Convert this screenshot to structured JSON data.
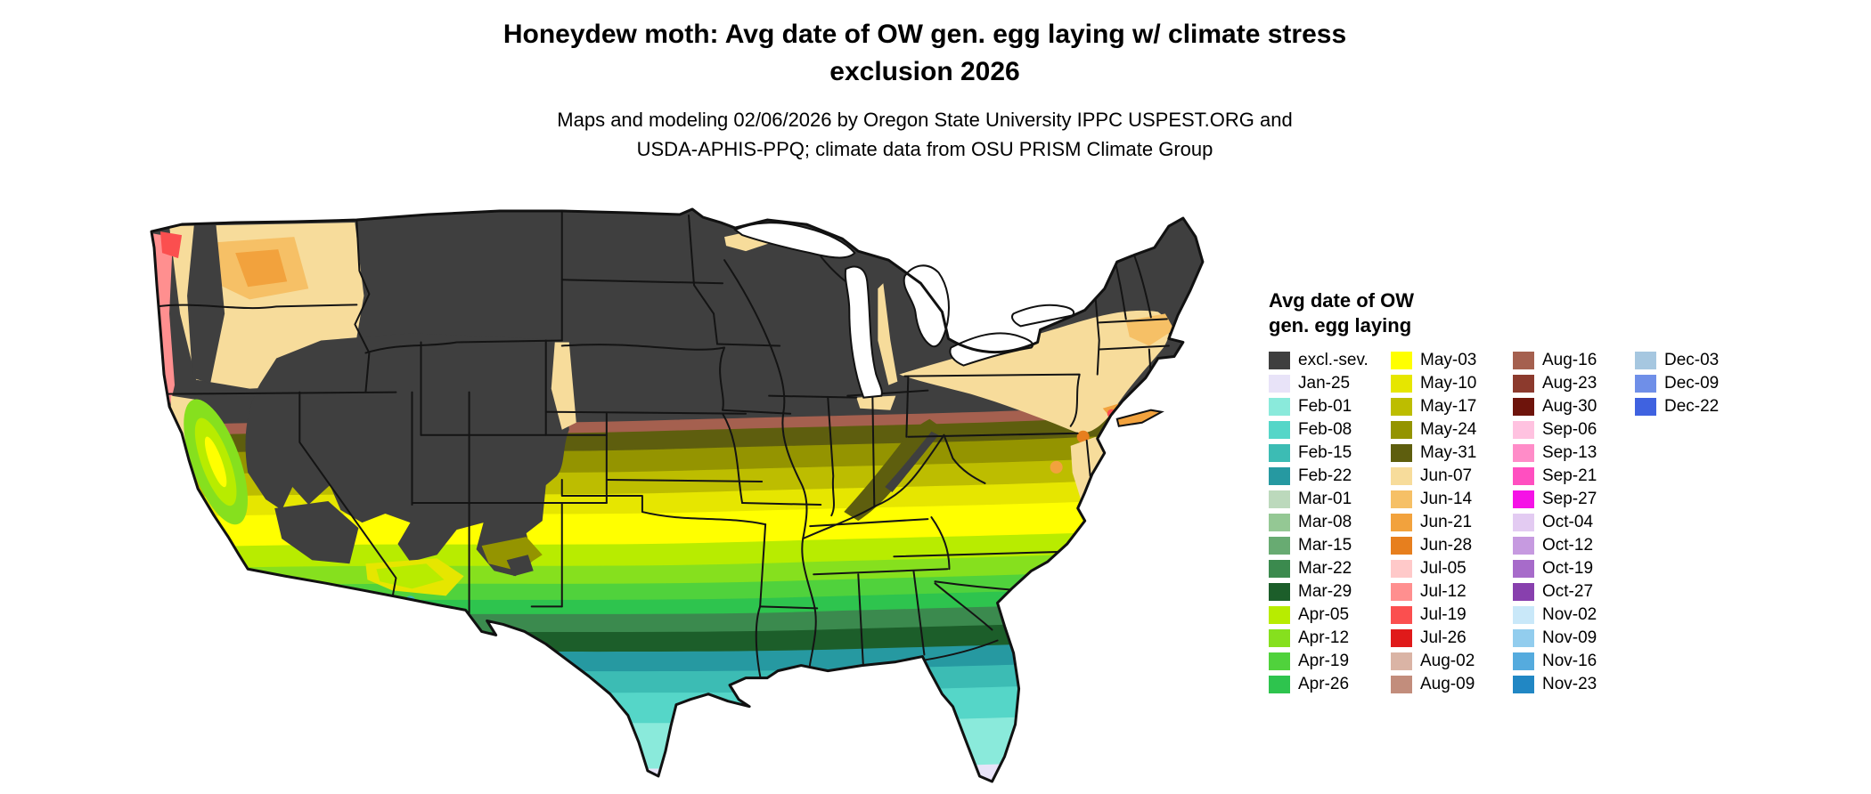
{
  "title": {
    "line1": "Honeydew moth: Avg date of OW gen. egg laying w/ climate stress",
    "line2": "exclusion 2026"
  },
  "subtitle": {
    "line1": "Maps and modeling 02/06/2026 by Oregon State University IPPC USPEST.ORG and",
    "line2": "USDA-APHIS-PPQ; climate data from OSU PRISM Climate Group"
  },
  "legend": {
    "title_line1": "Avg date of OW",
    "title_line2": "gen. egg laying",
    "columns": [
      [
        {
          "label": "excl.-sev.",
          "color": "#3f3f3f"
        },
        {
          "label": "Jan-25",
          "color": "#e8e3f8"
        },
        {
          "label": "Feb-01",
          "color": "#8aeadb"
        },
        {
          "label": "Feb-08",
          "color": "#55d6c8"
        },
        {
          "label": "Feb-15",
          "color": "#3cbcb4"
        },
        {
          "label": "Feb-22",
          "color": "#2699a1"
        },
        {
          "label": "Mar-01",
          "color": "#bcd9bc"
        },
        {
          "label": "Mar-08",
          "color": "#94c894"
        },
        {
          "label": "Mar-15",
          "color": "#68ab72"
        },
        {
          "label": "Mar-22",
          "color": "#3b8a4e"
        },
        {
          "label": "Mar-29",
          "color": "#1c5e2a"
        },
        {
          "label": "Apr-05",
          "color": "#b8ec00"
        },
        {
          "label": "Apr-12",
          "color": "#86e01e"
        },
        {
          "label": "Apr-19",
          "color": "#50d23c"
        },
        {
          "label": "Apr-26",
          "color": "#2ec44e"
        }
      ],
      [
        {
          "label": "May-03",
          "color": "#ffff00"
        },
        {
          "label": "May-10",
          "color": "#e6e600"
        },
        {
          "label": "May-17",
          "color": "#bdbd00"
        },
        {
          "label": "May-24",
          "color": "#949400"
        },
        {
          "label": "May-31",
          "color": "#5e5e0e"
        },
        {
          "label": "Jun-07",
          "color": "#f7dc9b"
        },
        {
          "label": "Jun-14",
          "color": "#f6c066"
        },
        {
          "label": "Jun-21",
          "color": "#f2a23d"
        },
        {
          "label": "Jun-28",
          "color": "#e77f1e"
        },
        {
          "label": "Jul-05",
          "color": "#ffc9c9"
        },
        {
          "label": "Jul-12",
          "color": "#ff8f8f"
        },
        {
          "label": "Jul-19",
          "color": "#fb4f4f"
        },
        {
          "label": "Jul-26",
          "color": "#e01a1a"
        },
        {
          "label": "Aug-02",
          "color": "#dab4a5"
        },
        {
          "label": "Aug-09",
          "color": "#c28d7c"
        }
      ],
      [
        {
          "label": "Aug-16",
          "color": "#a5604f"
        },
        {
          "label": "Aug-23",
          "color": "#8c3a2d"
        },
        {
          "label": "Aug-30",
          "color": "#6e140c"
        },
        {
          "label": "Sep-06",
          "color": "#ffc2e0"
        },
        {
          "label": "Sep-13",
          "color": "#ff8cc8"
        },
        {
          "label": "Sep-21",
          "color": "#ff4fc0"
        },
        {
          "label": "Sep-27",
          "color": "#f512e6"
        },
        {
          "label": "Oct-04",
          "color": "#e3cbf2"
        },
        {
          "label": "Oct-12",
          "color": "#c69ae0"
        },
        {
          "label": "Oct-19",
          "color": "#a76bca"
        },
        {
          "label": "Oct-27",
          "color": "#8840ae"
        },
        {
          "label": "Nov-02",
          "color": "#c9e8f9"
        },
        {
          "label": "Nov-09",
          "color": "#92cdee"
        },
        {
          "label": "Nov-16",
          "color": "#55abde"
        },
        {
          "label": "Nov-23",
          "color": "#2187c4"
        }
      ],
      [
        {
          "label": "Dec-03",
          "color": "#a6c7e0"
        },
        {
          "label": "Dec-09",
          "color": "#6f8fe8"
        },
        {
          "label": "Dec-22",
          "color": "#3f62e0"
        }
      ]
    ]
  }
}
